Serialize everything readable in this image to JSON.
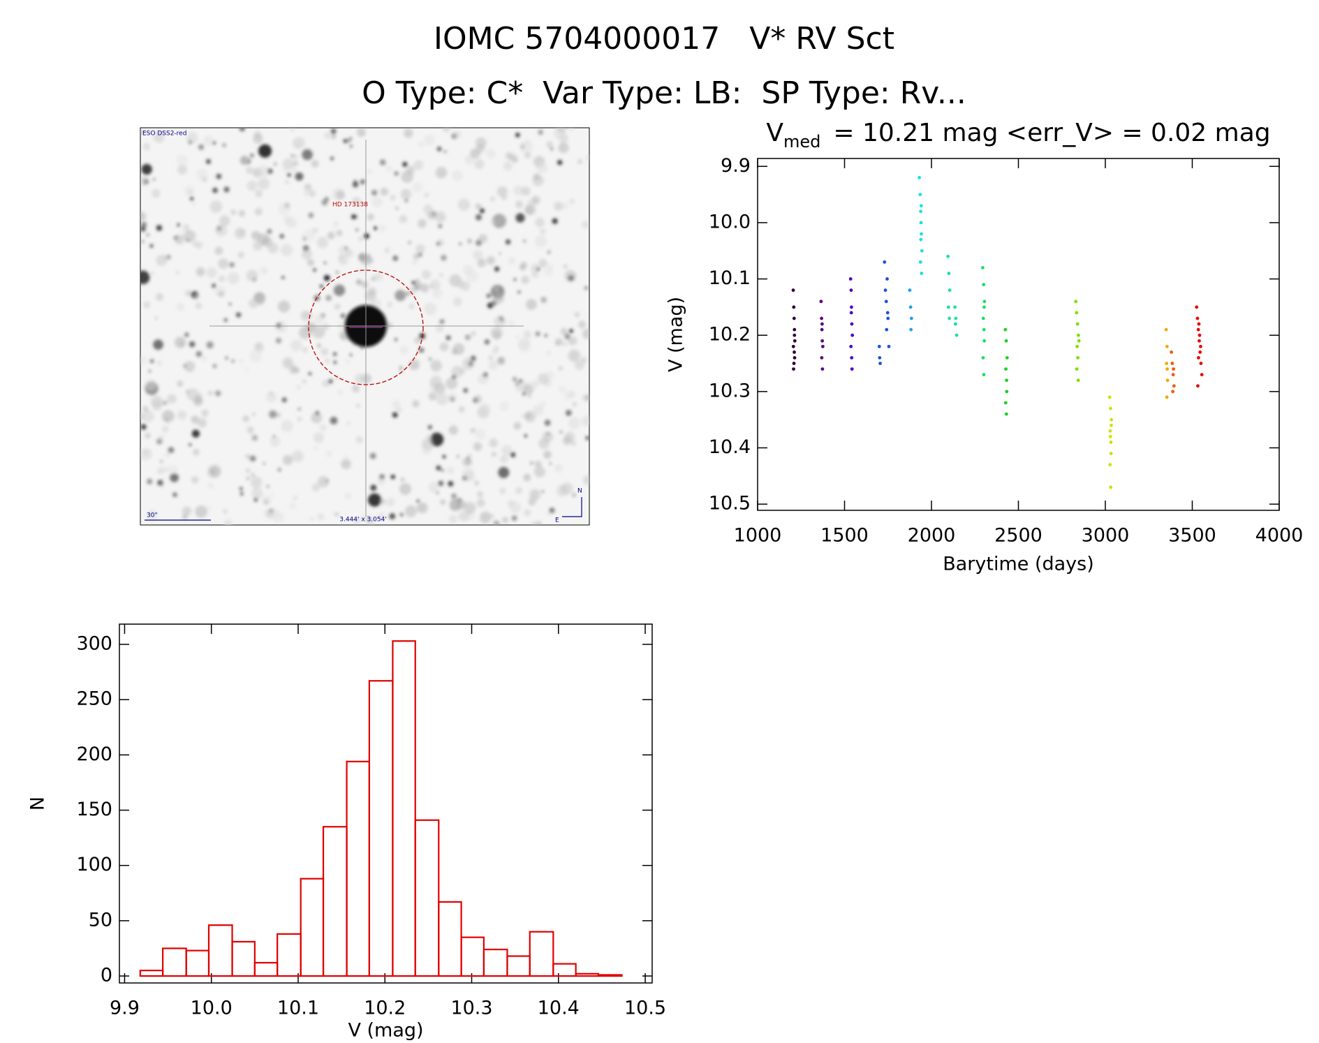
{
  "header": {
    "title": "IOMC 5704000017   V* RV Sct",
    "subtitle": "O Type: C*  Var Type: LB:  SP Type: Rv..."
  },
  "image": {
    "survey": "ESO DSS2-red",
    "target": "HD 173138",
    "scale": "30\"",
    "size": "3.444' x 3.054'",
    "north": "N",
    "east": "E"
  },
  "chart_data": [
    {
      "type": "scatter",
      "title": [
        "V",
        "med",
        "= 10.21 mag <err_V> = 0.02 mag"
      ],
      "x_label": "Barytime (days)",
      "y_label": "V (mag)",
      "xlim": [
        1000,
        4000
      ],
      "xticks": [
        1000,
        1500,
        2000,
        2500,
        3000,
        3500,
        4000
      ],
      "ylim": [
        10.511,
        9.886
      ],
      "yticks": [
        9.9,
        {
          "value": 10,
          "label": "10.0"
        },
        10.1,
        10.2,
        10.3,
        10.4,
        10.5
      ],
      "grid": false,
      "series": [
        {
          "color": "#2a0030",
          "x": [
            1205,
            1208,
            1210,
            1212,
            1214,
            1206,
            1211,
            1213,
            1209,
            1207,
            1212
          ],
          "values": [
            10.12,
            10.15,
            10.17,
            10.19,
            10.21,
            10.22,
            10.23,
            10.24,
            10.25,
            10.26,
            10.2
          ]
        },
        {
          "color": "#5a0080",
          "x": [
            1365,
            1368,
            1370,
            1372,
            1375,
            1369,
            1373,
            1371
          ],
          "values": [
            10.14,
            10.17,
            10.19,
            10.21,
            10.22,
            10.24,
            10.26,
            10.18
          ]
        },
        {
          "color": "#4a00c8",
          "x": [
            1535,
            1538,
            1540,
            1542,
            1545,
            1537,
            1541,
            1543,
            1539
          ],
          "values": [
            10.1,
            10.12,
            10.15,
            10.18,
            10.2,
            10.22,
            10.24,
            10.26,
            10.16
          ]
        },
        {
          "color": "#1a50e0",
          "x": [
            1700,
            1702,
            1705,
            1730,
            1735,
            1740,
            1745,
            1750,
            1755,
            1742,
            1748
          ],
          "values": [
            10.22,
            10.24,
            10.25,
            10.07,
            10.12,
            10.14,
            10.1,
            10.17,
            10.22,
            10.19,
            10.16
          ]
        },
        {
          "color": "#1aa0f0",
          "x": [
            1875,
            1880,
            1885,
            1882
          ],
          "values": [
            10.12,
            10.15,
            10.17,
            10.19
          ]
        },
        {
          "color": "#1ae0e0",
          "x": [
            1930,
            1935,
            1938,
            1940,
            1942,
            1945,
            1937,
            1943,
            1939,
            1941
          ],
          "values": [
            9.92,
            9.95,
            9.98,
            10.0,
            10.02,
            10.05,
            10.07,
            10.09,
            10.03,
            9.97
          ]
        },
        {
          "color": "#1ae0a0",
          "x": [
            2095,
            2100,
            2105,
            2098,
            2103,
            2135,
            2140,
            2145,
            2138
          ],
          "values": [
            10.06,
            10.09,
            10.12,
            10.15,
            10.17,
            10.15,
            10.17,
            10.2,
            10.18
          ]
        },
        {
          "color": "#1ae060",
          "x": [
            2295,
            2300,
            2305,
            2298,
            2302,
            2304,
            2297,
            2301,
            2303
          ],
          "values": [
            10.08,
            10.11,
            10.14,
            10.17,
            10.19,
            10.21,
            10.24,
            10.27,
            10.15
          ]
        },
        {
          "color": "#1ad020",
          "x": [
            2425,
            2430,
            2435,
            2428,
            2432,
            2433,
            2427,
            2431
          ],
          "values": [
            10.19,
            10.21,
            10.24,
            10.26,
            10.28,
            10.3,
            10.32,
            10.34
          ]
        },
        {
          "color": "#7ae000",
          "x": [
            2830,
            2835,
            2840,
            2845,
            2838,
            2842,
            2836,
            2844,
            2848
          ],
          "values": [
            10.14,
            10.16,
            10.18,
            10.2,
            10.22,
            10.24,
            10.26,
            10.28,
            10.21
          ]
        },
        {
          "color": "#d0e000",
          "x": [
            3025,
            3030,
            3035,
            3028,
            3032,
            3033,
            3027,
            3031,
            3029,
            3034
          ],
          "values": [
            10.31,
            10.33,
            10.35,
            10.37,
            10.39,
            10.41,
            10.43,
            10.47,
            10.38,
            10.36
          ]
        },
        {
          "color": "#f0a800",
          "x": [
            3350,
            3355,
            3352,
            3358,
            3354,
            3356
          ],
          "values": [
            10.19,
            10.22,
            10.25,
            10.28,
            10.31,
            10.26
          ]
        },
        {
          "color": "#f05a00",
          "x": [
            3380,
            3385,
            3390,
            3395,
            3388,
            3392
          ],
          "values": [
            10.23,
            10.25,
            10.27,
            10.29,
            10.3,
            10.26
          ]
        },
        {
          "color": "#e80000",
          "x": [
            3525,
            3530,
            3535,
            3540,
            3545,
            3550,
            3555,
            3532,
            3538,
            3548,
            3542,
            3536
          ],
          "values": [
            10.15,
            10.17,
            10.19,
            10.21,
            10.23,
            10.25,
            10.27,
            10.29,
            10.18,
            10.22,
            10.2,
            10.24
          ]
        }
      ]
    },
    {
      "type": "histogram",
      "x_label": "V (mag)",
      "y_label": "N",
      "color": "#e00000",
      "xlim": [
        9.894,
        10.508
      ],
      "xticks": [
        9.9,
        {
          "value": 10,
          "label": "10.0"
        },
        10.1,
        10.2,
        10.3,
        10.4,
        10.5
      ],
      "ylim": [
        -6.3,
        318.3
      ],
      "yticks": [
        0,
        50,
        100,
        150,
        200,
        250,
        300
      ],
      "grid": false,
      "bins": [
        9.918,
        9.944,
        9.971,
        9.997,
        10.024,
        10.05,
        10.076,
        10.103,
        10.129,
        10.156,
        10.182,
        10.209,
        10.235,
        10.262,
        10.288,
        10.314,
        10.341,
        10.367,
        10.394,
        10.42,
        10.446,
        10.473
      ],
      "values": [
        5,
        25,
        23,
        46,
        31,
        12,
        38,
        88,
        135,
        194,
        267,
        303,
        141,
        67,
        35,
        24,
        18,
        40,
        11,
        2,
        1
      ]
    }
  ]
}
